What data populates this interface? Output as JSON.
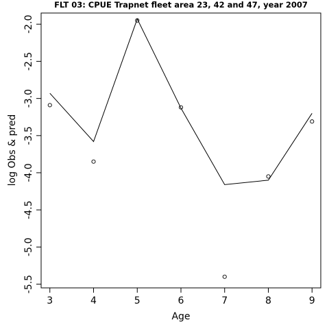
{
  "chart_data": {
    "type": "line",
    "title": "FLT 03: CPUE Trapnet fleet area 23, 42 and 47, year 2007",
    "xlabel": "Age",
    "ylabel": "log Obs & pred",
    "xlim": [
      2.8,
      9.2
    ],
    "ylim": [
      -5.55,
      -1.85
    ],
    "x_ticks": [
      3,
      4,
      5,
      6,
      7,
      8,
      9
    ],
    "x_tick_labels": [
      "3",
      "4",
      "5",
      "6",
      "7",
      "8",
      "9"
    ],
    "y_ticks": [
      -5.5,
      -5.0,
      -4.5,
      -4.0,
      -3.5,
      -3.0,
      -2.5,
      -2.0
    ],
    "y_tick_labels": [
      "-5.5",
      "-5.0",
      "-4.5",
      "-4.0",
      "-3.5",
      "-3.0",
      "-2.5",
      "-2.0"
    ],
    "x": [
      3,
      4,
      5,
      6,
      7,
      8,
      9
    ],
    "series": [
      {
        "style": "line",
        "color": "#000000",
        "values": [
          -2.93,
          -3.58,
          -1.93,
          -3.13,
          -4.16,
          -4.1,
          -3.2
        ]
      },
      {
        "style": "points",
        "marker": "open-circle",
        "color": "#000000",
        "values": [
          -3.09,
          -3.85,
          -1.95,
          -3.12,
          -5.4,
          -4.05,
          -3.31
        ]
      }
    ],
    "grid": false,
    "legend": "none"
  }
}
